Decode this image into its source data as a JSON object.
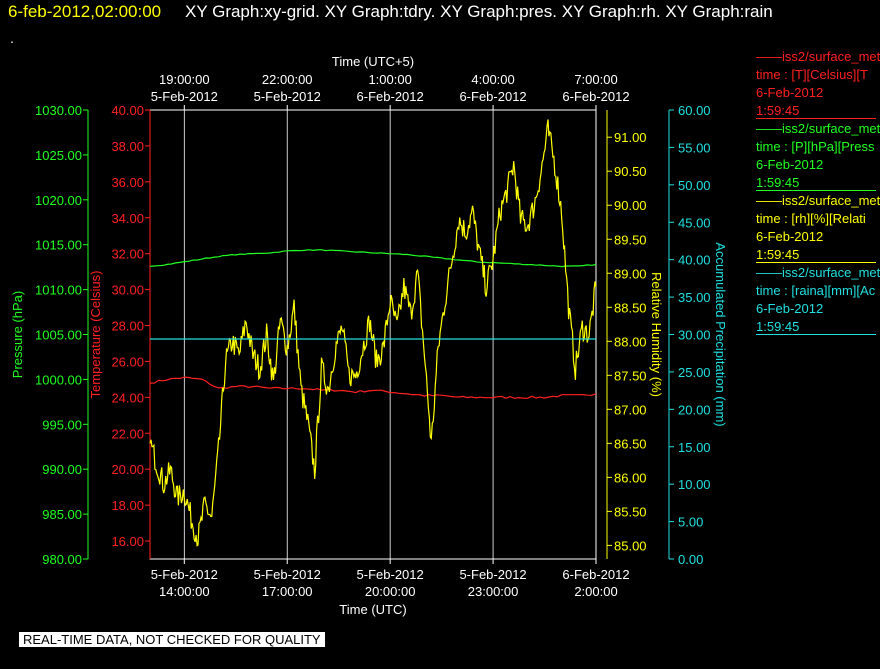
{
  "header": {
    "timestamp": "6-feb-2012,02:00:00",
    "titles": "XY Graph:xy-grid.  XY Graph:tdry.  XY Graph:pres.  XY Graph:rh.  XY Graph:rain",
    "dot": "."
  },
  "footer": {
    "notice": "REAL-TIME DATA, NOT CHECKED FOR QUALITY"
  },
  "legend": [
    {
      "name": "——iss2/surface_met",
      "field": "time : [T][Celsius][T",
      "date": "6-Feb-2012",
      "time": "1:59:45",
      "color": "#ff2020"
    },
    {
      "name": "——iss2/surface_met",
      "field": "time : [P][hPa][Press",
      "date": "6-Feb-2012",
      "time": "1:59:45",
      "color": "#20ff20"
    },
    {
      "name": "——iss2/surface_met",
      "field": "time : [rh][%][Relati",
      "date": "6-Feb-2012",
      "time": "1:59:45",
      "color": "#ffff00"
    },
    {
      "name": "——iss2/surface_met",
      "field": "time : [raina][mm][Ac",
      "date": "6-Feb-2012",
      "time": "1:59:45",
      "color": "#20e0e0"
    }
  ],
  "chart_data": {
    "type": "line",
    "title": "Time (UTC+5)",
    "xlabel": "Time (UTC)",
    "x_range_utc": [
      "5-Feb-2012 13:00",
      "6-Feb-2012 02:00"
    ],
    "top_axis_ticks": [
      {
        "date": "5-Feb-2012",
        "time": "19:00:00"
      },
      {
        "date": "5-Feb-2012",
        "time": "22:00:00"
      },
      {
        "date": "6-Feb-2012",
        "time": "1:00:00"
      },
      {
        "date": "6-Feb-2012",
        "time": "4:00:00"
      },
      {
        "date": "6-Feb-2012",
        "time": "7:00:00"
      }
    ],
    "bottom_axis_ticks": [
      {
        "date": "5-Feb-2012",
        "time": "14:00:00"
      },
      {
        "date": "5-Feb-2012",
        "time": "17:00:00"
      },
      {
        "date": "5-Feb-2012",
        "time": "20:00:00"
      },
      {
        "date": "5-Feb-2012",
        "time": "23:00:00"
      },
      {
        "date": "6-Feb-2012",
        "time": "2:00:00"
      }
    ],
    "grid": true,
    "axes": [
      {
        "key": "pres",
        "label": "Pressure (hPa)",
        "color": "#20ff20",
        "min": 980,
        "max": 1030,
        "ticks": [
          "980.00",
          "985.00",
          "990.00",
          "995.00",
          "1000.00",
          "1005.00",
          "1010.00",
          "1015.00",
          "1020.00",
          "1025.00",
          "1030.00"
        ]
      },
      {
        "key": "temp",
        "label": "Temperature (Celsius)",
        "color": "#ff2020",
        "min": 15,
        "max": 40,
        "ticks": [
          "16.00",
          "18.00",
          "20.00",
          "22.00",
          "24.00",
          "26.00",
          "28.00",
          "30.00",
          "32.00",
          "34.00",
          "36.00",
          "38.00",
          "40.00"
        ]
      },
      {
        "key": "rh",
        "label": "Relative Humidity (%)",
        "color": "#ffff00",
        "min": 84.8,
        "max": 91.4,
        "ticks": [
          "85.00",
          "85.50",
          "86.00",
          "86.50",
          "87.00",
          "87.50",
          "88.00",
          "88.50",
          "89.00",
          "89.50",
          "90.00",
          "90.50",
          "91.00"
        ]
      },
      {
        "key": "rain",
        "label": "Accumulated Precipitation (mm)",
        "color": "#20e0e0",
        "min": 0,
        "max": 60,
        "ticks": [
          "0.00",
          "5.00",
          "10.00",
          "15.00",
          "20.00",
          "25.00",
          "30.00",
          "35.00",
          "40.00",
          "45.00",
          "50.00",
          "55.00",
          "60.00"
        ]
      }
    ],
    "series": [
      {
        "name": "Temperature",
        "axis": "temp",
        "color": "#ff2020",
        "x_hours": [
          13.0,
          13.5,
          14.0,
          14.5,
          15.0,
          15.5,
          16.0,
          16.5,
          17.0,
          17.5,
          18.0,
          18.5,
          19.0,
          19.5,
          20.0,
          20.5,
          21.0,
          21.5,
          22.0,
          22.5,
          23.0,
          23.5,
          24.0,
          24.5,
          25.0,
          25.5,
          26.0
        ],
        "values": [
          24.8,
          25.0,
          25.1,
          25.0,
          24.5,
          24.6,
          24.6,
          24.5,
          24.5,
          24.5,
          24.4,
          24.4,
          24.3,
          24.4,
          24.3,
          24.2,
          24.1,
          24.1,
          24.0,
          24.0,
          24.0,
          24.0,
          24.0,
          24.0,
          24.1,
          24.1,
          24.2
        ]
      },
      {
        "name": "Pressure",
        "axis": "pres",
        "color": "#20ff20",
        "x_hours": [
          13.0,
          13.5,
          14.0,
          14.5,
          15.0,
          15.5,
          16.0,
          16.5,
          17.0,
          17.5,
          18.0,
          18.5,
          19.0,
          19.5,
          20.0,
          20.5,
          21.0,
          21.5,
          22.0,
          22.5,
          23.0,
          23.5,
          24.0,
          24.5,
          25.0,
          25.5,
          26.0
        ],
        "values": [
          1012.6,
          1012.8,
          1013.1,
          1013.4,
          1013.7,
          1013.9,
          1014.0,
          1014.1,
          1014.3,
          1014.4,
          1014.4,
          1014.3,
          1014.2,
          1014.1,
          1014.0,
          1013.9,
          1013.7,
          1013.5,
          1013.3,
          1013.1,
          1013.0,
          1012.9,
          1012.8,
          1012.7,
          1012.6,
          1012.6,
          1012.8
        ]
      },
      {
        "name": "Relative Humidity",
        "axis": "rh",
        "color": "#ffff00",
        "x_hours": [
          13.0,
          13.2,
          13.4,
          13.6,
          13.8,
          14.0,
          14.2,
          14.4,
          14.6,
          14.8,
          15.0,
          15.2,
          15.4,
          15.6,
          15.8,
          16.0,
          16.2,
          16.4,
          16.6,
          16.8,
          17.0,
          17.2,
          17.4,
          17.6,
          17.8,
          18.0,
          18.2,
          18.4,
          18.6,
          18.8,
          19.0,
          19.2,
          19.4,
          19.6,
          19.8,
          20.0,
          20.2,
          20.4,
          20.6,
          20.8,
          21.0,
          21.2,
          21.4,
          21.6,
          21.8,
          22.0,
          22.2,
          22.4,
          22.6,
          22.8,
          23.0,
          23.2,
          23.4,
          23.6,
          23.8,
          24.0,
          24.2,
          24.4,
          24.6,
          24.8,
          25.0,
          25.2,
          25.4,
          25.6,
          25.8,
          26.0
        ],
        "values": [
          86.5,
          86.2,
          85.9,
          86.1,
          85.7,
          85.8,
          85.4,
          85.1,
          85.6,
          85.4,
          86.4,
          87.7,
          88.0,
          87.8,
          88.3,
          87.8,
          87.6,
          88.1,
          87.4,
          88.3,
          87.9,
          88.5,
          87.3,
          86.8,
          86.1,
          87.6,
          87.3,
          87.9,
          88.2,
          87.5,
          87.5,
          87.9,
          88.3,
          87.7,
          87.9,
          88.6,
          88.2,
          88.8,
          88.4,
          89.0,
          87.8,
          86.5,
          87.9,
          88.6,
          89.2,
          89.8,
          89.6,
          89.9,
          89.3,
          88.8,
          89.2,
          89.9,
          90.2,
          90.6,
          89.8,
          89.7,
          90.0,
          90.5,
          91.1,
          90.6,
          89.9,
          88.5,
          87.6,
          88.2,
          88.1,
          88.8
        ]
      },
      {
        "name": "Accumulated Precipitation",
        "axis": "rain",
        "color": "#20e0e0",
        "x_hours": [
          13.0,
          26.0
        ],
        "values": [
          29.4,
          29.4
        ]
      }
    ]
  }
}
